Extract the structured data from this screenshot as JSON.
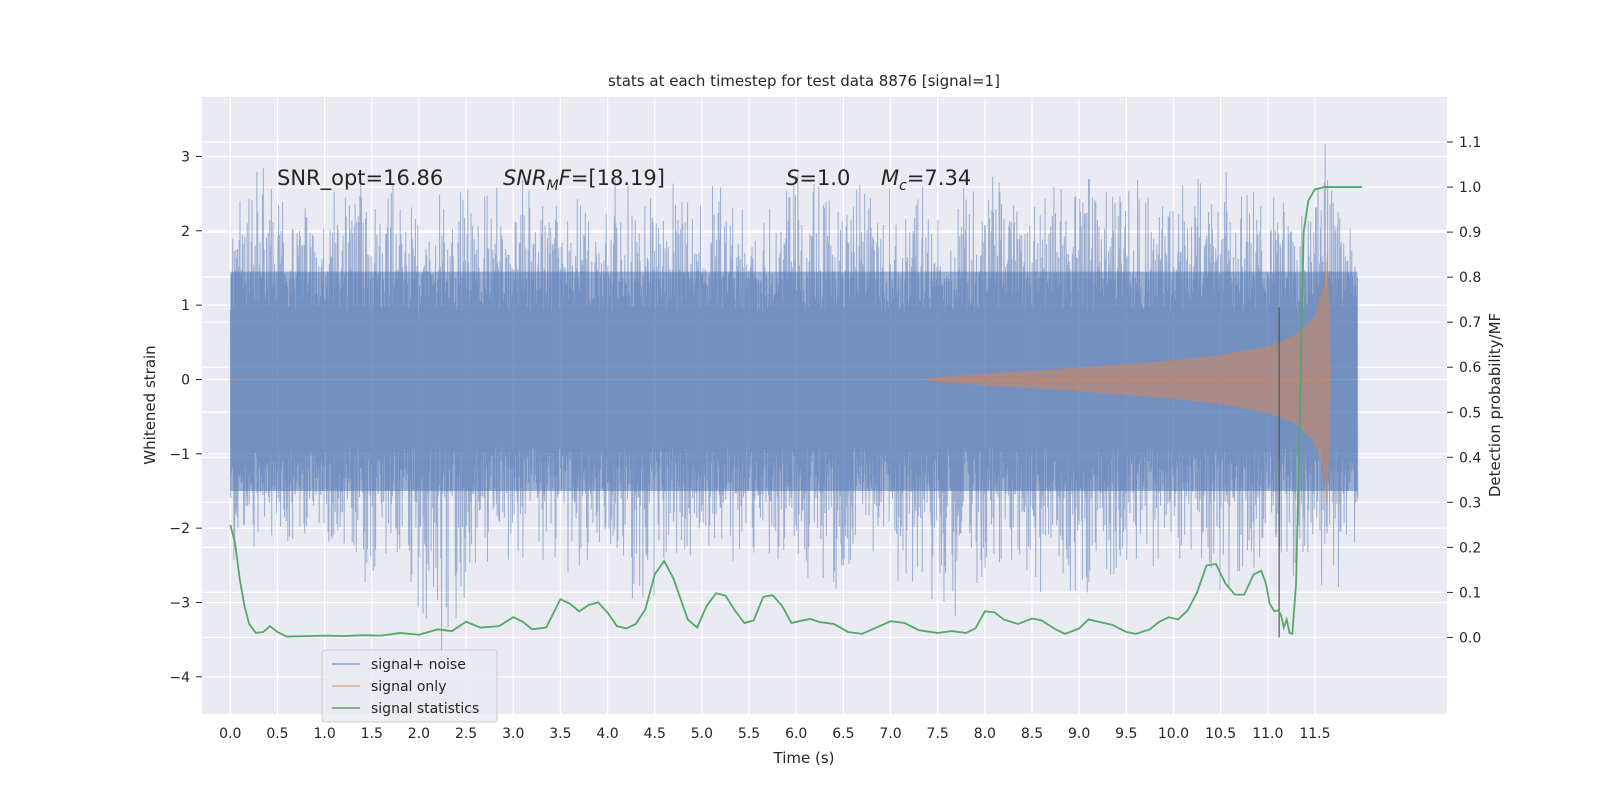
{
  "chart_data": {
    "type": "line",
    "title": "stats at each timestep for test data 8876 [signal=1]",
    "xlabel": "Time (s)",
    "ylabel": "Whitened strain",
    "y2label": "Detection probability/MF",
    "xlim": [
      -0.3,
      12.9
    ],
    "ylim": [
      -4.5,
      3.8
    ],
    "y2lim": [
      -0.17,
      1.2
    ],
    "xticks": [
      "0.0",
      "0.5",
      "1.0",
      "1.5",
      "2.0",
      "2.5",
      "3.0",
      "3.5",
      "4.0",
      "4.5",
      "5.0",
      "5.5",
      "6.0",
      "6.5",
      "7.0",
      "7.5",
      "8.0",
      "8.5",
      "9.0",
      "9.5",
      "10.0",
      "10.5",
      "11.0",
      "11.5"
    ],
    "yticks": [
      3,
      2,
      1,
      0,
      -1,
      -2,
      -3,
      -4
    ],
    "ytick_labels": [
      "3",
      "2",
      "1",
      "0",
      "−1",
      "−2",
      "−3",
      "−4"
    ],
    "y2ticks": [
      1.1,
      1.0,
      0.9,
      0.8,
      0.7,
      0.6,
      0.5,
      0.4,
      0.3,
      0.2,
      0.1,
      0.0
    ],
    "y2tick_labels": [
      "1.1",
      "1.0",
      "0.9",
      "0.8",
      "0.7",
      "0.6",
      "0.5",
      "0.4",
      "0.3",
      "0.2",
      "0.1",
      "0.0"
    ],
    "annotations": {
      "snr_opt": "SNR_opt=16.86",
      "snr_mf_name": "SNR",
      "snr_mf_sub": "M",
      "snr_mf_f": "F",
      "snr_mf_value": "=[18.19]",
      "s_name": "S",
      "s_value": "=1.0",
      "mc_name": "M",
      "mc_sub": "c",
      "mc_value": "=7.34"
    },
    "legend": {
      "location": "lower-left",
      "entries": [
        "signal+ noise",
        "signal only",
        "signal statistics"
      ]
    },
    "detection_time": 11.12,
    "series": [
      {
        "name": "signal+ noise",
        "color": "#4c72b0",
        "x_start": 0.0,
        "x_end": 11.95,
        "envelope_max": [
          [
            0.0,
            1.6
          ],
          [
            0.1,
            3.3
          ],
          [
            0.4,
            3.3
          ],
          [
            0.6,
            2.8
          ],
          [
            1.0,
            2.6
          ],
          [
            1.7,
            3.05
          ],
          [
            2.0,
            2.6
          ],
          [
            2.5,
            2.9
          ],
          [
            3.0,
            2.8
          ],
          [
            3.5,
            2.9
          ],
          [
            4.0,
            2.7
          ],
          [
            4.5,
            2.8
          ],
          [
            5.0,
            2.8
          ],
          [
            5.5,
            2.6
          ],
          [
            6.0,
            3.0
          ],
          [
            6.5,
            2.8
          ],
          [
            7.0,
            2.9
          ],
          [
            7.5,
            2.9
          ],
          [
            8.0,
            2.9
          ],
          [
            8.5,
            2.7
          ],
          [
            9.0,
            3.0
          ],
          [
            9.5,
            2.8
          ],
          [
            10.0,
            2.9
          ],
          [
            10.5,
            3.0
          ],
          [
            11.0,
            2.8
          ],
          [
            11.45,
            3.0
          ],
          [
            11.6,
            3.5
          ],
          [
            11.75,
            2.6
          ],
          [
            11.95,
            2.2
          ]
        ],
        "envelope_min": [
          [
            0.0,
            -2.7
          ],
          [
            0.3,
            -2.5
          ],
          [
            0.6,
            -2.8
          ],
          [
            1.0,
            -2.5
          ],
          [
            1.8,
            -3.2
          ],
          [
            2.3,
            -3.9
          ],
          [
            2.6,
            -2.7
          ],
          [
            3.0,
            -2.6
          ],
          [
            3.5,
            -2.8
          ],
          [
            4.0,
            -2.7
          ],
          [
            4.35,
            -3.65
          ],
          [
            4.6,
            -2.6
          ],
          [
            5.0,
            -2.8
          ],
          [
            5.5,
            -2.6
          ],
          [
            6.0,
            -2.9
          ],
          [
            6.45,
            -3.55
          ],
          [
            7.0,
            -2.8
          ],
          [
            7.5,
            -3.55
          ],
          [
            8.0,
            -2.8
          ],
          [
            8.5,
            -3.1
          ],
          [
            9.1,
            -3.3
          ],
          [
            9.5,
            -2.6
          ],
          [
            10.0,
            -2.8
          ],
          [
            10.5,
            -3.1
          ],
          [
            11.0,
            -2.8
          ],
          [
            11.4,
            -3.05
          ],
          [
            11.6,
            -3.05
          ],
          [
            11.8,
            -3.3
          ],
          [
            11.95,
            -2.2
          ]
        ]
      },
      {
        "name": "signal only",
        "color": "#dd8452",
        "x_start": 0.0,
        "x_end": 11.95,
        "merger_time": 11.65,
        "envelope_amplitude": [
          [
            0.0,
            0.0
          ],
          [
            7.3,
            0.0
          ],
          [
            7.5,
            0.03
          ],
          [
            8.0,
            0.08
          ],
          [
            9.0,
            0.16
          ],
          [
            10.0,
            0.26
          ],
          [
            10.5,
            0.33
          ],
          [
            11.0,
            0.45
          ],
          [
            11.3,
            0.6
          ],
          [
            11.5,
            0.85
          ],
          [
            11.6,
            1.3
          ],
          [
            11.65,
            2.0
          ],
          [
            11.66,
            0.0
          ],
          [
            11.95,
            0.0
          ]
        ]
      },
      {
        "name": "signal statistics",
        "color": "#55a868",
        "axis": "right",
        "points": [
          [
            0.0,
            0.25
          ],
          [
            0.05,
            0.21
          ],
          [
            0.1,
            0.13
          ],
          [
            0.15,
            0.07
          ],
          [
            0.2,
            0.03
          ],
          [
            0.27,
            0.01
          ],
          [
            0.35,
            0.012
          ],
          [
            0.42,
            0.025
          ],
          [
            0.5,
            0.012
          ],
          [
            0.6,
            0.002
          ],
          [
            0.8,
            0.003
          ],
          [
            1.0,
            0.004
          ],
          [
            1.2,
            0.003
          ],
          [
            1.4,
            0.005
          ],
          [
            1.6,
            0.004
          ],
          [
            1.8,
            0.01
          ],
          [
            2.0,
            0.006
          ],
          [
            2.2,
            0.018
          ],
          [
            2.35,
            0.014
          ],
          [
            2.5,
            0.035
          ],
          [
            2.65,
            0.022
          ],
          [
            2.85,
            0.025
          ],
          [
            3.0,
            0.045
          ],
          [
            3.1,
            0.035
          ],
          [
            3.2,
            0.018
          ],
          [
            3.35,
            0.022
          ],
          [
            3.5,
            0.085
          ],
          [
            3.6,
            0.075
          ],
          [
            3.7,
            0.058
          ],
          [
            3.8,
            0.072
          ],
          [
            3.9,
            0.078
          ],
          [
            4.0,
            0.055
          ],
          [
            4.1,
            0.025
          ],
          [
            4.2,
            0.02
          ],
          [
            4.3,
            0.03
          ],
          [
            4.4,
            0.062
          ],
          [
            4.5,
            0.14
          ],
          [
            4.6,
            0.17
          ],
          [
            4.7,
            0.13
          ],
          [
            4.8,
            0.07
          ],
          [
            4.85,
            0.04
          ],
          [
            4.95,
            0.022
          ],
          [
            5.05,
            0.07
          ],
          [
            5.15,
            0.098
          ],
          [
            5.25,
            0.093
          ],
          [
            5.35,
            0.06
          ],
          [
            5.45,
            0.032
          ],
          [
            5.55,
            0.038
          ],
          [
            5.65,
            0.09
          ],
          [
            5.75,
            0.094
          ],
          [
            5.85,
            0.07
          ],
          [
            5.95,
            0.032
          ],
          [
            6.05,
            0.037
          ],
          [
            6.15,
            0.041
          ],
          [
            6.25,
            0.034
          ],
          [
            6.4,
            0.03
          ],
          [
            6.55,
            0.012
          ],
          [
            6.7,
            0.008
          ],
          [
            6.85,
            0.022
          ],
          [
            7.0,
            0.036
          ],
          [
            7.15,
            0.032
          ],
          [
            7.3,
            0.016
          ],
          [
            7.5,
            0.01
          ],
          [
            7.65,
            0.014
          ],
          [
            7.8,
            0.01
          ],
          [
            7.9,
            0.02
          ],
          [
            8.0,
            0.058
          ],
          [
            8.1,
            0.056
          ],
          [
            8.2,
            0.04
          ],
          [
            8.35,
            0.03
          ],
          [
            8.5,
            0.042
          ],
          [
            8.6,
            0.038
          ],
          [
            8.75,
            0.018
          ],
          [
            8.85,
            0.008
          ],
          [
            9.0,
            0.02
          ],
          [
            9.1,
            0.04
          ],
          [
            9.2,
            0.035
          ],
          [
            9.35,
            0.028
          ],
          [
            9.5,
            0.012
          ],
          [
            9.6,
            0.008
          ],
          [
            9.75,
            0.018
          ],
          [
            9.85,
            0.035
          ],
          [
            9.95,
            0.045
          ],
          [
            10.05,
            0.04
          ],
          [
            10.15,
            0.06
          ],
          [
            10.25,
            0.1
          ],
          [
            10.35,
            0.16
          ],
          [
            10.45,
            0.163
          ],
          [
            10.55,
            0.12
          ],
          [
            10.65,
            0.095
          ],
          [
            10.75,
            0.095
          ],
          [
            10.85,
            0.14
          ],
          [
            10.93,
            0.148
          ],
          [
            10.98,
            0.12
          ],
          [
            11.02,
            0.075
          ],
          [
            11.07,
            0.058
          ],
          [
            11.11,
            0.06
          ],
          [
            11.14,
            0.05
          ],
          [
            11.17,
            0.022
          ],
          [
            11.2,
            0.04
          ],
          [
            11.23,
            0.01
          ],
          [
            11.26,
            0.008
          ],
          [
            11.3,
            0.12
          ],
          [
            11.34,
            0.5
          ],
          [
            11.38,
            0.9
          ],
          [
            11.43,
            0.97
          ],
          [
            11.5,
            0.995
          ],
          [
            11.6,
            1.0
          ],
          [
            12.0,
            1.0
          ]
        ]
      }
    ]
  },
  "colors": {
    "axes_background": "#eaeaf2",
    "grid": "#ffffff",
    "detection_line": "#555555"
  }
}
